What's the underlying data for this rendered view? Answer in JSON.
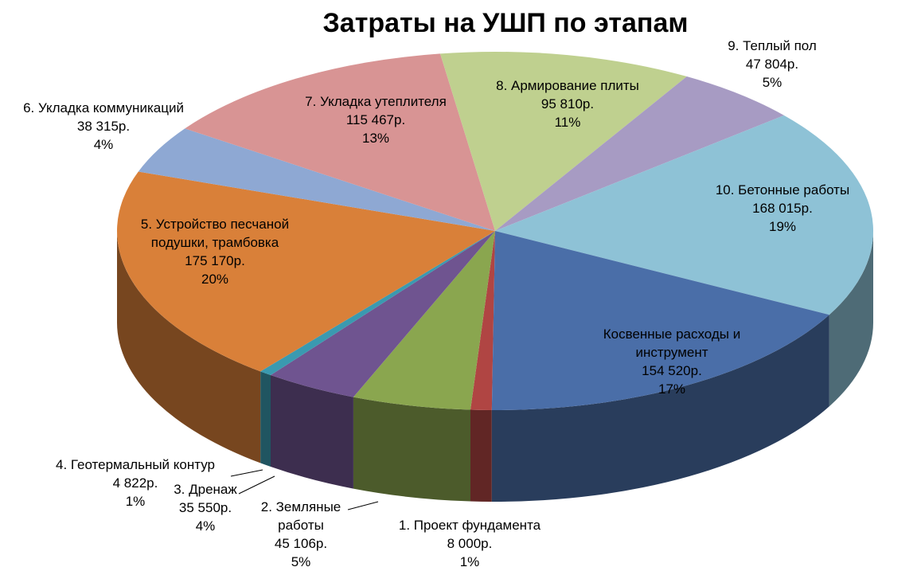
{
  "chart_data": {
    "type": "pie3d",
    "title": "Затраты на УШП по этапам",
    "categories": [
      "1. Проект фундамента",
      "2. Земляные работы",
      "3. Дренаж",
      "4. Геотермальный контур",
      "5. Устройство песчаной подушки,  трамбовка",
      "6. Укладка  коммуникаций",
      "7. Укладка  утеплителя",
      "8. Армирование плиты",
      "9. Теплый  пол",
      "10. Бетонные работы",
      "Косвенные расходы и инструмент"
    ],
    "values": [
      8000,
      45106,
      35550,
      4822,
      175170,
      38315,
      115467,
      95810,
      47804,
      168015,
      154520
    ],
    "value_labels": [
      "8 000р.",
      "45 106р.",
      "35 550р.",
      "4 822р.",
      "175 170р.",
      "38 315р.",
      "115 467р.",
      "95 810р.",
      "47 804р.",
      "168 015р.",
      "154 520р."
    ],
    "percent_labels": [
      "1%",
      "5%",
      "4%",
      "1%",
      "20%",
      "4%",
      "13%",
      "11%",
      "5%",
      "19%",
      "17%"
    ],
    "colors": [
      "#b04543",
      "#8aa64f",
      "#6f5490",
      "#3a9ab0",
      "#d98039",
      "#8ea8d3",
      "#d89494",
      "#bfd08f",
      "#a79bc3",
      "#8ec2d6",
      "#4a6ea8"
    ]
  }
}
